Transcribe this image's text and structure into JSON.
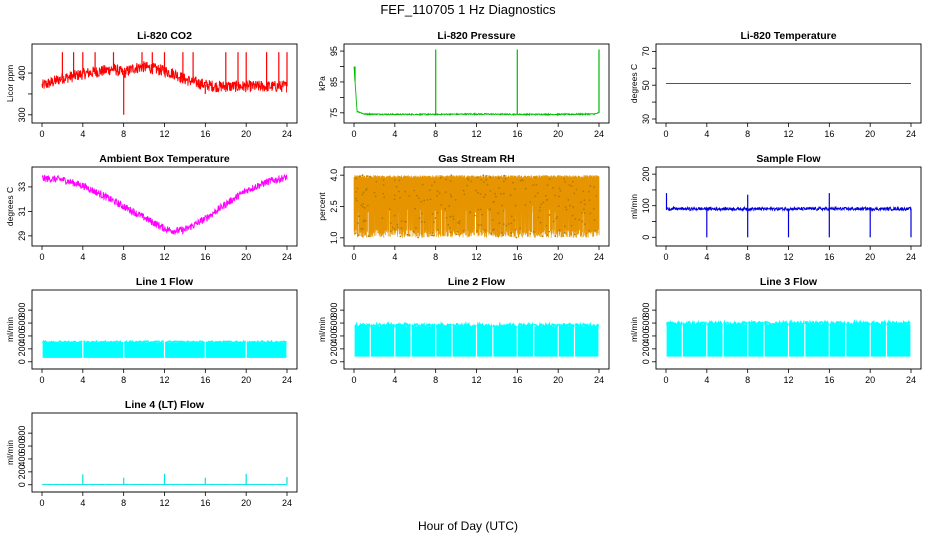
{
  "figure": {
    "title": "FEF_110705  1 Hz Diagnostics",
    "xlabel": "Hour of Day (UTC)"
  },
  "chart_data": [
    {
      "id": "co2",
      "type": "line",
      "title": "Li-820 CO2",
      "ylabel": "Licor ppm",
      "color": "#ff0000",
      "xlim": [
        0,
        24
      ],
      "ylim": [
        290,
        460
      ],
      "xticks": [
        0,
        4,
        8,
        12,
        16,
        20,
        24
      ],
      "yticks": [
        300,
        350,
        400
      ],
      "ytick_labels": [
        "300",
        "",
        "400"
      ],
      "x": [
        0,
        1,
        2,
        3,
        4,
        5,
        6,
        7,
        8,
        9,
        10,
        11,
        12,
        13,
        14,
        15,
        16,
        17,
        18,
        19,
        20,
        21,
        22,
        23,
        24
      ],
      "y": [
        370,
        378,
        388,
        392,
        398,
        402,
        405,
        410,
        400,
        412,
        415,
        410,
        405,
        398,
        385,
        378,
        372,
        368,
        368,
        368,
        368,
        368,
        368,
        368,
        368
      ],
      "noise": 14,
      "spikes": [
        [
          2,
          450
        ],
        [
          3.1,
          450
        ],
        [
          4,
          450
        ],
        [
          5.2,
          450
        ],
        [
          7,
          450
        ],
        [
          8,
          300
        ],
        [
          9.8,
          450
        ],
        [
          10.8,
          450
        ],
        [
          12,
          450
        ],
        [
          13.8,
          450
        ],
        [
          14.8,
          450
        ],
        [
          16,
          350
        ],
        [
          18,
          450
        ],
        [
          19.2,
          450
        ],
        [
          20,
          450
        ],
        [
          22,
          450
        ],
        [
          23.2,
          450
        ],
        [
          24,
          450
        ]
      ]
    },
    {
      "id": "pressure",
      "type": "line",
      "title": "Li-820 Pressure",
      "ylabel": "kPa",
      "color": "#00bb00",
      "xlim": [
        0,
        24
      ],
      "ylim": [
        73,
        96
      ],
      "xticks": [
        0,
        4,
        8,
        12,
        16,
        20,
        24
      ],
      "yticks": [
        75,
        80,
        85,
        90,
        95
      ],
      "ytick_labels": [
        "75",
        "",
        "85",
        "",
        "95"
      ],
      "x": [
        0,
        0.3,
        1,
        4,
        8,
        12,
        16,
        20,
        23.5,
        24
      ],
      "y": [
        90,
        75.5,
        74.6,
        74.5,
        74.5,
        74.6,
        74.5,
        74.5,
        74.6,
        75
      ],
      "noise": 0.2,
      "spikes": [
        [
          0.1,
          90
        ],
        [
          8,
          95.5
        ],
        [
          16,
          95.5
        ],
        [
          24,
          95.5
        ]
      ]
    },
    {
      "id": "licor_temp",
      "type": "line",
      "title": "Li-820 Temperature",
      "ylabel": "degrees C",
      "color": "#cc00cc",
      "xlim": [
        0,
        24
      ],
      "ylim": [
        30,
        72
      ],
      "xticks": [
        0,
        4,
        8,
        12,
        16,
        20,
        24
      ],
      "yticks": [
        30,
        40,
        50,
        60,
        70
      ],
      "ytick_labels": [
        "30",
        "",
        "50",
        "",
        "70"
      ],
      "x": [
        0,
        24
      ],
      "y": [
        51,
        51
      ],
      "noise": 0,
      "spikes": []
    },
    {
      "id": "ambient_temp",
      "type": "line",
      "title": "Ambient Box Temperature",
      "ylabel": "degrees C",
      "color": "#ff00ff",
      "xlim": [
        0,
        24
      ],
      "ylim": [
        28.5,
        34.3
      ],
      "xticks": [
        0,
        4,
        8,
        12,
        16,
        20,
        24
      ],
      "yticks": [
        29,
        31,
        33
      ],
      "ytick_labels": [
        "29",
        "31",
        "33"
      ],
      "x": [
        0,
        2,
        4,
        6,
        8,
        10,
        12,
        13,
        14,
        16,
        18,
        20,
        22,
        24
      ],
      "y": [
        33.7,
        33.6,
        33.1,
        32.3,
        31.4,
        30.5,
        29.6,
        29.4,
        29.5,
        30.4,
        31.6,
        32.7,
        33.4,
        33.8
      ],
      "noise": 0.3,
      "spikes": []
    },
    {
      "id": "rh",
      "type": "line",
      "title": "Gas Stream RH",
      "ylabel": "percent",
      "color": "#e69500",
      "xlim": [
        0,
        24
      ],
      "ylim": [
        0.8,
        4.2
      ],
      "xticks": [
        0,
        4,
        8,
        12,
        16,
        20,
        24
      ],
      "yticks": [
        1.0,
        2.5,
        4.0
      ],
      "ytick_labels": [
        "1.0",
        "2.5",
        "4.0"
      ],
      "band": [
        1.0,
        4.0
      ],
      "dips": 70
    },
    {
      "id": "sample_flow",
      "type": "line",
      "title": "Sample Flow",
      "ylabel": "ml/min",
      "color": "#0000dd",
      "xlim": [
        0,
        24
      ],
      "ylim": [
        -15,
        210
      ],
      "xticks": [
        0,
        4,
        8,
        12,
        16,
        20,
        24
      ],
      "yticks": [
        0,
        50,
        100,
        150,
        200
      ],
      "ytick_labels": [
        "0",
        "",
        "100",
        "",
        "200"
      ],
      "x": [
        0,
        24
      ],
      "y": [
        90,
        90
      ],
      "noise": 5,
      "spikes": [
        [
          0.05,
          140
        ],
        [
          4,
          0
        ],
        [
          8,
          0
        ],
        [
          8,
          135
        ],
        [
          12,
          0
        ],
        [
          16,
          0
        ],
        [
          16,
          140
        ],
        [
          20,
          0
        ],
        [
          24,
          0
        ]
      ]
    },
    {
      "id": "line1",
      "type": "line",
      "title": "Line 1 Flow",
      "ylabel": "ml/min",
      "color": "#00ffff",
      "xlim": [
        0,
        24
      ],
      "ylim": [
        -50,
        1050
      ],
      "xticks": [
        0,
        4,
        8,
        12,
        16,
        20,
        24
      ],
      "yticks": [
        0,
        200,
        400,
        600,
        800
      ],
      "ytick_labels": [
        "0",
        "200",
        "400",
        "600",
        "800"
      ],
      "band": [
        60,
        300
      ],
      "gaps": [
        4,
        8,
        12,
        16,
        20,
        24
      ]
    },
    {
      "id": "line2",
      "type": "line",
      "title": "Line 2 Flow",
      "ylabel": "ml/min",
      "color": "#00ffff",
      "xlim": [
        0,
        24
      ],
      "ylim": [
        -50,
        1050
      ],
      "xticks": [
        0,
        4,
        8,
        12,
        16,
        20,
        24
      ],
      "yticks": [
        0,
        200,
        400,
        600,
        800
      ],
      "ytick_labels": [
        "0",
        "200",
        "400",
        "600",
        "800"
      ],
      "band": [
        80,
        550
      ],
      "gaps": [
        1.6,
        4,
        5.6,
        8,
        9.6,
        12,
        13.6,
        16,
        17.6,
        20,
        21.6,
        24
      ]
    },
    {
      "id": "line3",
      "type": "line",
      "title": "Line 3 Flow",
      "ylabel": "ml/min",
      "color": "#00ffff",
      "xlim": [
        0,
        24
      ],
      "ylim": [
        -50,
        1050
      ],
      "xticks": [
        0,
        4,
        8,
        12,
        16,
        20,
        24
      ],
      "yticks": [
        0,
        200,
        400,
        600,
        800
      ],
      "ytick_labels": [
        "0",
        "200",
        "400",
        "600",
        "800"
      ],
      "band": [
        80,
        580
      ],
      "gaps": [
        1.6,
        4,
        5.6,
        8,
        9.6,
        12,
        13.6,
        16,
        17.6,
        20,
        21.6,
        24
      ]
    },
    {
      "id": "line4",
      "type": "line",
      "title": "Line 4 (LT) Flow",
      "ylabel": "ml/min",
      "color": "#00e5e5",
      "xlim": [
        0,
        24
      ],
      "ylim": [
        -50,
        1050
      ],
      "xticks": [
        0,
        4,
        8,
        12,
        16,
        20,
        24
      ],
      "yticks": [
        0,
        200,
        400,
        600,
        800
      ],
      "ytick_labels": [
        "0",
        "200",
        "400",
        "600",
        "800"
      ],
      "x": [
        0,
        24
      ],
      "y": [
        5,
        5
      ],
      "noise": 3,
      "spikes": [
        [
          4,
          160
        ],
        [
          8,
          110
        ],
        [
          12,
          170
        ],
        [
          16,
          110
        ],
        [
          20,
          170
        ],
        [
          24,
          120
        ]
      ]
    }
  ]
}
